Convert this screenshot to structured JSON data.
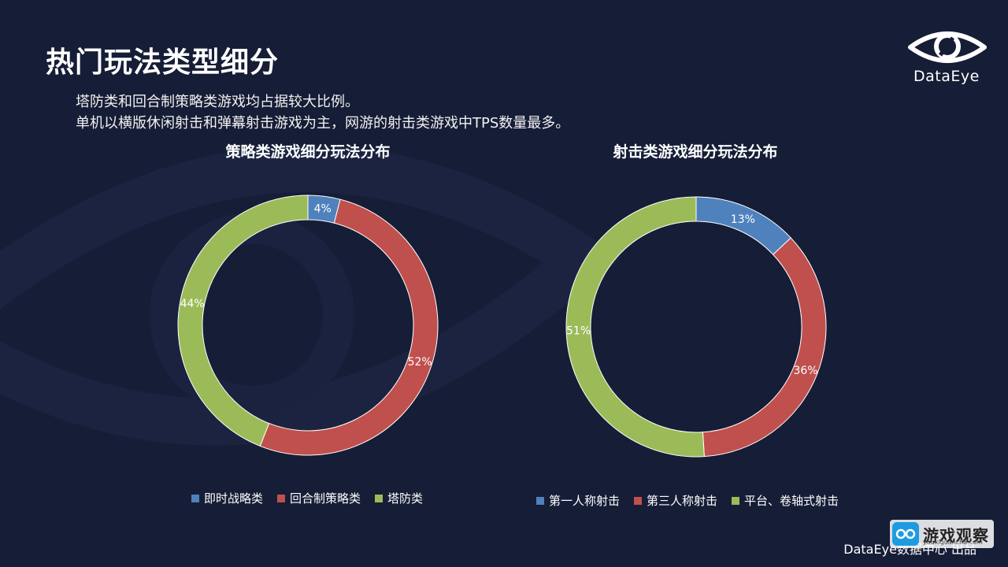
{
  "page": {
    "title": "热门玩法类型细分",
    "subtitle_lines": [
      "塔防类和回合制策略类游戏均占据较大比例。",
      "单机以横版休闲射击和弹幕射击游戏为主，网游的射击类游戏中TPS数量最多。"
    ],
    "logo_text": "DataEye",
    "footer": "DataEye数据中心 出品",
    "watermark": {
      "name": "游戏观察",
      "url": "youxiguancha.com"
    },
    "icons": [
      "eye-logo-icon",
      "watermark-badge-icon"
    ]
  },
  "chart_data": [
    {
      "type": "pie",
      "donut": true,
      "title": "策略类游戏细分玩法分布",
      "categories": [
        "即时战略类",
        "回合制策略类",
        "塔防类"
      ],
      "values": [
        4,
        52,
        44
      ],
      "labels": [
        "4%",
        "52%",
        "44%"
      ],
      "colors": [
        "#4f81bd",
        "#c0504d",
        "#9bbb59"
      ],
      "legend": "bottom"
    },
    {
      "type": "pie",
      "donut": true,
      "title": "射击类游戏细分玩法分布",
      "categories": [
        "第一人称射击",
        "第三人称射击",
        "平台、卷轴式射击"
      ],
      "values": [
        13,
        36,
        51
      ],
      "labels": [
        "13%",
        "36%",
        "51%"
      ],
      "colors": [
        "#4f81bd",
        "#c0504d",
        "#9bbb59"
      ],
      "legend": "bottom"
    }
  ]
}
